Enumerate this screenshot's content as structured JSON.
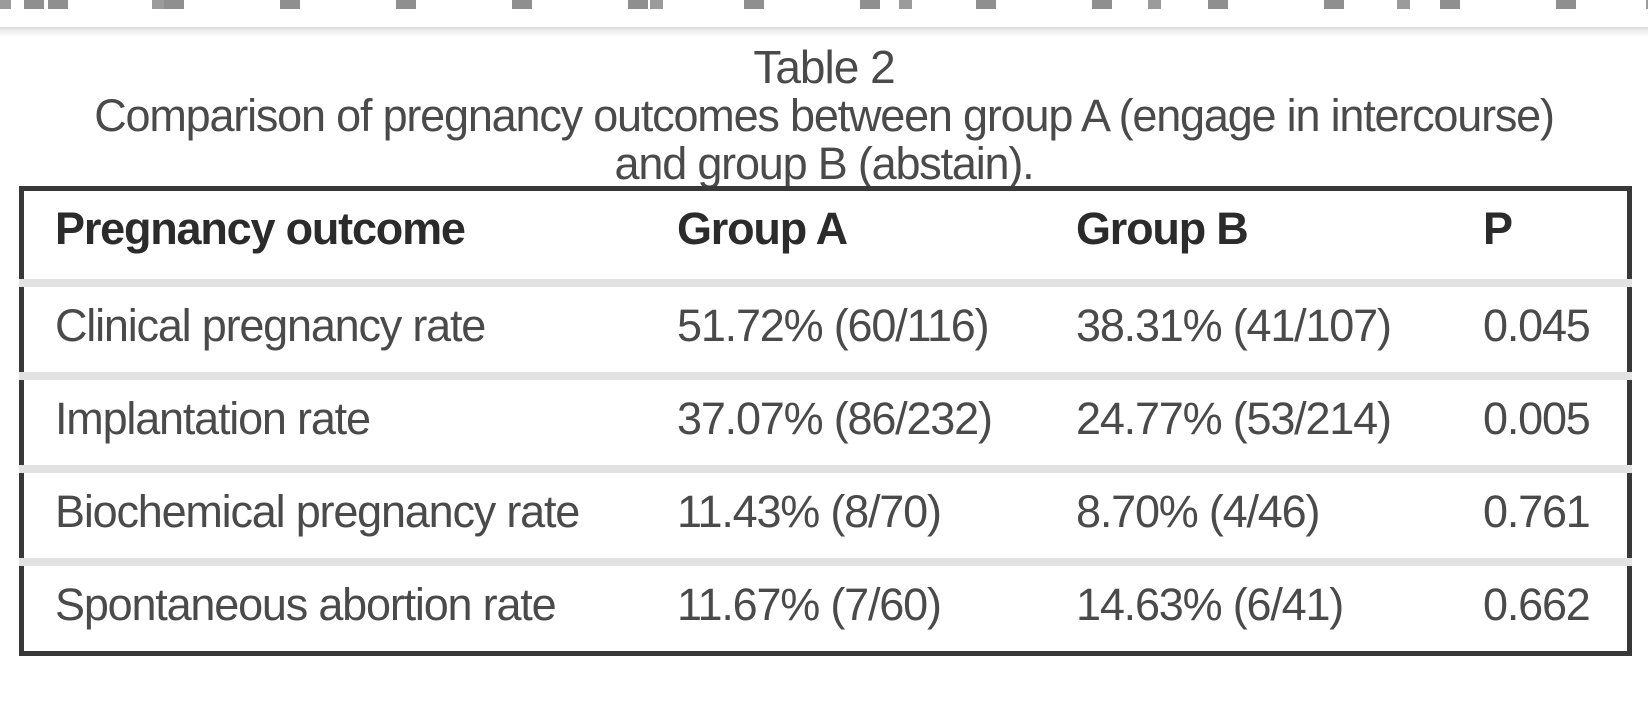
{
  "page": {
    "title": "Table 2",
    "caption_lines": [
      "Comparison of pregnancy outcomes between group A (engage in intercourse)",
      "and group B (abstain)."
    ]
  },
  "table": {
    "columns": [
      "Pregnancy outcome",
      "Group A",
      "Group B",
      "P"
    ],
    "rows": [
      [
        "Clinical pregnancy rate",
        "51.72% (60/116)",
        "38.31% (41/107)",
        "0.045"
      ],
      [
        "Implantation rate",
        "37.07% (86/232)",
        "24.77% (53/214)",
        "0.005"
      ],
      [
        "Biochemical pregnancy rate",
        "11.43% (8/70)",
        "8.70% (4/46)",
        "0.761"
      ],
      [
        "Spontaneous abortion rate",
        "11.67% (7/60)",
        "14.63% (6/41)",
        "0.662"
      ]
    ]
  },
  "colors": {
    "table_border": "#383838",
    "row_divider": "#e2e2e2",
    "header_text": "#2b2b2b",
    "body_text": "#4a4a4a",
    "caption_text": "#4a4a4a",
    "appbar_shadow": "#dcdcdc"
  }
}
